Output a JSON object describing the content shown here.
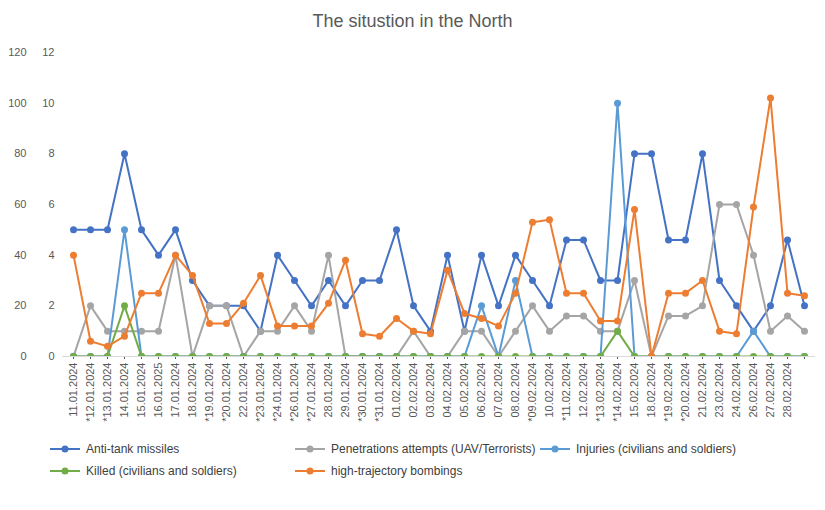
{
  "chart_data": {
    "type": "line",
    "title": "The situstion in the North",
    "x": [
      "11.01.2024",
      "*12.01.2024",
      "*13.01.2024",
      "14.01.2024",
      "15.01.2024",
      "16.01.2025",
      "17.01.2024",
      "18.01.2024",
      "*19.01.2024",
      "*20.01.2024",
      "22.01.2024",
      "*23.01.2024",
      "*24.01.2024",
      "*26.01.2024",
      "*27.01.2024",
      "28.01.2024",
      "29.01.2024",
      "*30.01.2024",
      "*31.01.2024",
      "01.02.2024",
      "02.02.2024",
      "03.02.2024",
      "04.02.2024",
      "05.02.2024",
      "06.02.2024",
      "07.02.2024",
      "08.02.2024",
      "*09.02.2024",
      "10.02.2024",
      "*11.02.2024",
      "12.02.2024",
      "*13.02.2024",
      "*14.02.2024",
      "15.02.2024",
      "18.02.2024",
      "*19.02.2024",
      "*20.02.2024",
      "21.02.2024",
      "23.02.2024",
      "24.02.2024",
      "26.02.2024",
      "27.02.2024",
      "28.02.2024",
      null
    ],
    "series": [
      {
        "name": "Anti-tank missiles",
        "color": "#4472c4",
        "values": [
          5,
          5,
          5,
          8,
          5,
          4,
          5,
          3,
          2,
          2,
          2,
          1,
          4,
          3,
          2,
          3,
          2,
          3,
          3,
          5,
          2,
          1,
          4,
          1,
          4,
          2,
          4,
          3,
          2,
          4.6,
          4.6,
          3,
          3,
          8,
          8,
          4.6,
          4.6,
          8,
          3,
          2,
          1,
          2,
          4.6,
          2
        ]
      },
      {
        "name": "Penetrations attempts (UAV/Terrorists)",
        "color": "#a5a5a5",
        "values": [
          0,
          2,
          1,
          1,
          1,
          1,
          4,
          0,
          2,
          2,
          0,
          1,
          1,
          2,
          1,
          4,
          0,
          0,
          0,
          0,
          1,
          0,
          0,
          1,
          1,
          0,
          1,
          2,
          1,
          1.6,
          1.6,
          1,
          1,
          3,
          0,
          1.6,
          1.6,
          2,
          6,
          6,
          4,
          1,
          1.6,
          1
        ]
      },
      {
        "name": "Injuries (civilians and soldiers)",
        "color": "#5b9bd5",
        "values": [
          0,
          0,
          0,
          5,
          0,
          0,
          0,
          0,
          0,
          0,
          0,
          0,
          0,
          0,
          0,
          0,
          0,
          0,
          0,
          0,
          0,
          0,
          0,
          0,
          2,
          0,
          3,
          0,
          0,
          0,
          0,
          0,
          10,
          0,
          0,
          0,
          0,
          0,
          0,
          0,
          1,
          0,
          0,
          0
        ]
      },
      {
        "name": "Killed (civilians and soldiers)",
        "color": "#70ad47",
        "values": [
          0,
          0,
          0,
          2,
          0,
          0,
          0,
          0,
          0,
          0,
          0,
          0,
          0,
          0,
          0,
          0,
          0,
          0,
          0,
          0,
          0,
          0,
          0,
          0,
          0,
          0,
          0,
          0,
          0,
          0,
          0,
          0,
          1,
          0,
          0,
          0,
          0,
          0,
          0,
          0,
          0,
          0,
          0,
          0
        ]
      },
      {
        "name": "high-trajectory bombings",
        "color": "#ed7d31",
        "axis": "y2",
        "values": [
          40,
          6,
          4,
          8,
          25,
          25,
          40,
          32,
          13,
          13,
          21,
          32,
          12,
          12,
          12,
          21,
          38,
          9,
          8,
          15,
          10,
          9,
          34,
          17,
          15,
          12,
          25,
          53,
          54,
          25,
          25,
          14,
          14,
          58,
          0,
          25,
          25,
          30,
          10,
          9,
          59,
          102,
          25,
          24
        ]
      }
    ],
    "ylim": [
      0,
      12
    ],
    "yticks": [
      0,
      2,
      4,
      6,
      8,
      10,
      12
    ],
    "y2lim": [
      0,
      120
    ],
    "y2ticks": [
      0,
      20,
      40,
      60,
      80,
      100,
      120
    ],
    "grid": false,
    "marker": "circle",
    "line_style": "solid",
    "legend": "bottom"
  }
}
